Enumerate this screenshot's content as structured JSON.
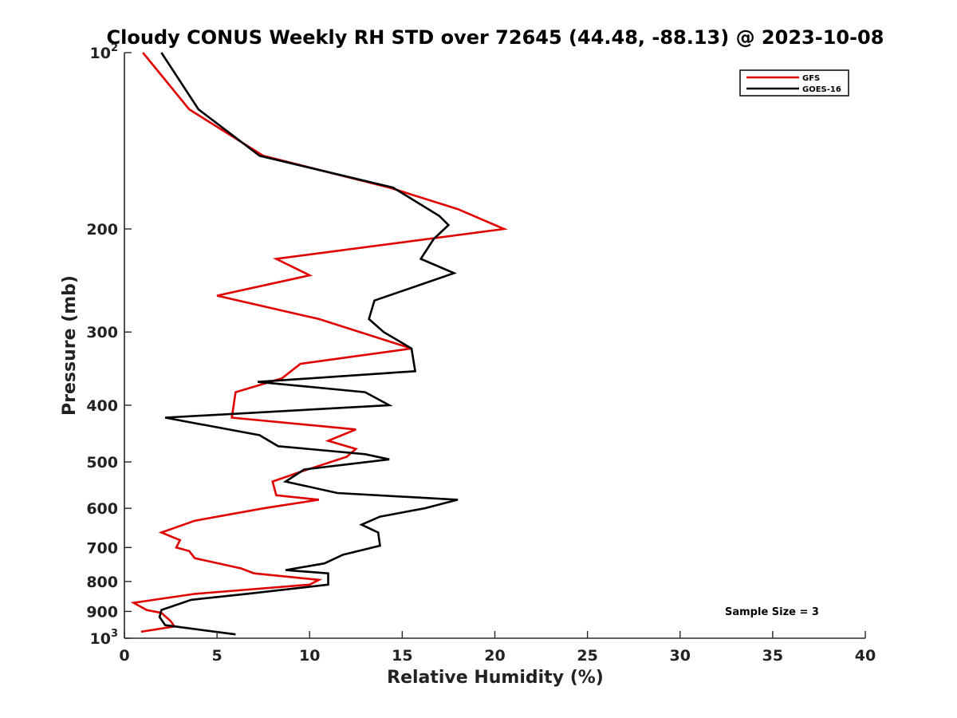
{
  "chart_data": {
    "type": "line",
    "title": "Cloudy CONUS Weekly RH STD over 72645 (44.48, -88.13) @ 2023-10-08",
    "xlabel": "Relative Humidity (%)",
    "ylabel": "Pressure (mb)",
    "xlim": [
      0,
      40
    ],
    "ylim": [
      100,
      1000
    ],
    "y_scale": "log",
    "y_reversed": true,
    "grid": false,
    "legend_position": "top-right",
    "x_ticks": [
      "0",
      "5",
      "10",
      "15",
      "20",
      "25",
      "30",
      "35",
      "40"
    ],
    "y_ticks": [
      {
        "value": 100,
        "base": "10",
        "exp": "2"
      },
      {
        "value": 200,
        "label": "200"
      },
      {
        "value": 300,
        "label": "300"
      },
      {
        "value": 400,
        "label": "400"
      },
      {
        "value": 500,
        "label": "500"
      },
      {
        "value": 600,
        "label": "600"
      },
      {
        "value": 700,
        "label": "700"
      },
      {
        "value": 800,
        "label": "800"
      },
      {
        "value": 900,
        "label": "900"
      },
      {
        "value": 1000,
        "base": "10",
        "exp": "3"
      }
    ],
    "series": [
      {
        "name": "GFS",
        "color": "#e00000",
        "points": [
          [
            1.0,
            100
          ],
          [
            3.5,
            125
          ],
          [
            7.5,
            150
          ],
          [
            14.3,
            170
          ],
          [
            18.0,
            185
          ],
          [
            20.5,
            200
          ],
          [
            8.2,
            225
          ],
          [
            10.0,
            240
          ],
          [
            5.0,
            260
          ],
          [
            10.5,
            285
          ],
          [
            15.5,
            320
          ],
          [
            9.5,
            340
          ],
          [
            8.5,
            360
          ],
          [
            6.0,
            380
          ],
          [
            5.8,
            420
          ],
          [
            12.5,
            440
          ],
          [
            11.0,
            460
          ],
          [
            12.5,
            475
          ],
          [
            12.0,
            490
          ],
          [
            9.5,
            520
          ],
          [
            8.0,
            540
          ],
          [
            8.2,
            570
          ],
          [
            10.5,
            580
          ],
          [
            7.5,
            600
          ],
          [
            3.8,
            630
          ],
          [
            2.0,
            660
          ],
          [
            3.0,
            680
          ],
          [
            2.8,
            700
          ],
          [
            3.5,
            710
          ],
          [
            3.8,
            730
          ],
          [
            6.3,
            760
          ],
          [
            7.0,
            775
          ],
          [
            10.5,
            795
          ],
          [
            10.0,
            810
          ],
          [
            3.8,
            840
          ],
          [
            0.5,
            870
          ],
          [
            1.2,
            895
          ],
          [
            2.0,
            905
          ],
          [
            2.5,
            935
          ],
          [
            2.7,
            955
          ],
          [
            0.9,
            975
          ]
        ]
      },
      {
        "name": "GOES-16",
        "color": "#000000",
        "points": [
          [
            2.0,
            100
          ],
          [
            4.0,
            125
          ],
          [
            7.3,
            150
          ],
          [
            14.5,
            170
          ],
          [
            17.0,
            190
          ],
          [
            17.5,
            197
          ],
          [
            16.7,
            208
          ],
          [
            16.0,
            225
          ],
          [
            17.8,
            238
          ],
          [
            13.5,
            265
          ],
          [
            13.2,
            285
          ],
          [
            14.0,
            300
          ],
          [
            15.5,
            320
          ],
          [
            15.7,
            350
          ],
          [
            7.2,
            365
          ],
          [
            13.0,
            380
          ],
          [
            14.3,
            400
          ],
          [
            2.2,
            420
          ],
          [
            7.3,
            450
          ],
          [
            8.3,
            470
          ],
          [
            13.0,
            485
          ],
          [
            14.3,
            495
          ],
          [
            9.7,
            515
          ],
          [
            8.7,
            540
          ],
          [
            11.5,
            565
          ],
          [
            18.0,
            580
          ],
          [
            16.2,
            600
          ],
          [
            13.8,
            620
          ],
          [
            12.8,
            640
          ],
          [
            13.7,
            660
          ],
          [
            13.8,
            695
          ],
          [
            11.8,
            720
          ],
          [
            10.8,
            745
          ],
          [
            8.7,
            765
          ],
          [
            11.0,
            775
          ],
          [
            11.0,
            810
          ],
          [
            6.6,
            840
          ],
          [
            3.6,
            860
          ],
          [
            2.0,
            895
          ],
          [
            1.9,
            920
          ],
          [
            2.2,
            950
          ],
          [
            6.0,
            985
          ]
        ]
      }
    ],
    "annotation": "Sample Size = 3"
  }
}
